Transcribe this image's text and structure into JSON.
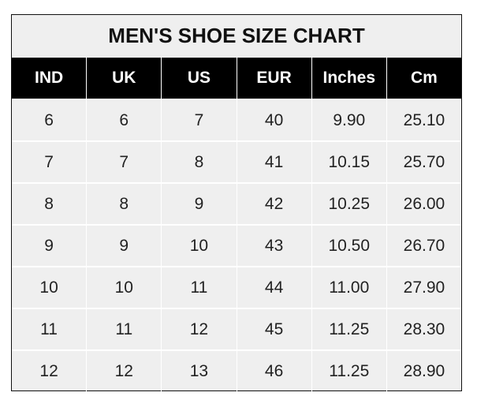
{
  "title": "MEN'S SHOE SIZE CHART",
  "headers": [
    "IND",
    "UK",
    "US",
    "EUR",
    "Inches",
    "Cm"
  ],
  "rows": [
    [
      "6",
      "6",
      "7",
      "40",
      "9.90",
      "25.10"
    ],
    [
      "7",
      "7",
      "8",
      "41",
      "10.15",
      "25.70"
    ],
    [
      "8",
      "8",
      "9",
      "42",
      "10.25",
      "26.00"
    ],
    [
      "9",
      "9",
      "10",
      "43",
      "10.50",
      "26.70"
    ],
    [
      "10",
      "10",
      "11",
      "44",
      "11.00",
      "27.90"
    ],
    [
      "11",
      "11",
      "12",
      "45",
      "11.25",
      "28.30"
    ],
    [
      "12",
      "12",
      "13",
      "46",
      "11.25",
      "28.90"
    ]
  ],
  "colors": {
    "header_bg": "#000000",
    "header_text": "#ffffff",
    "cell_bg": "#efefef",
    "grid": "#ffffff"
  }
}
